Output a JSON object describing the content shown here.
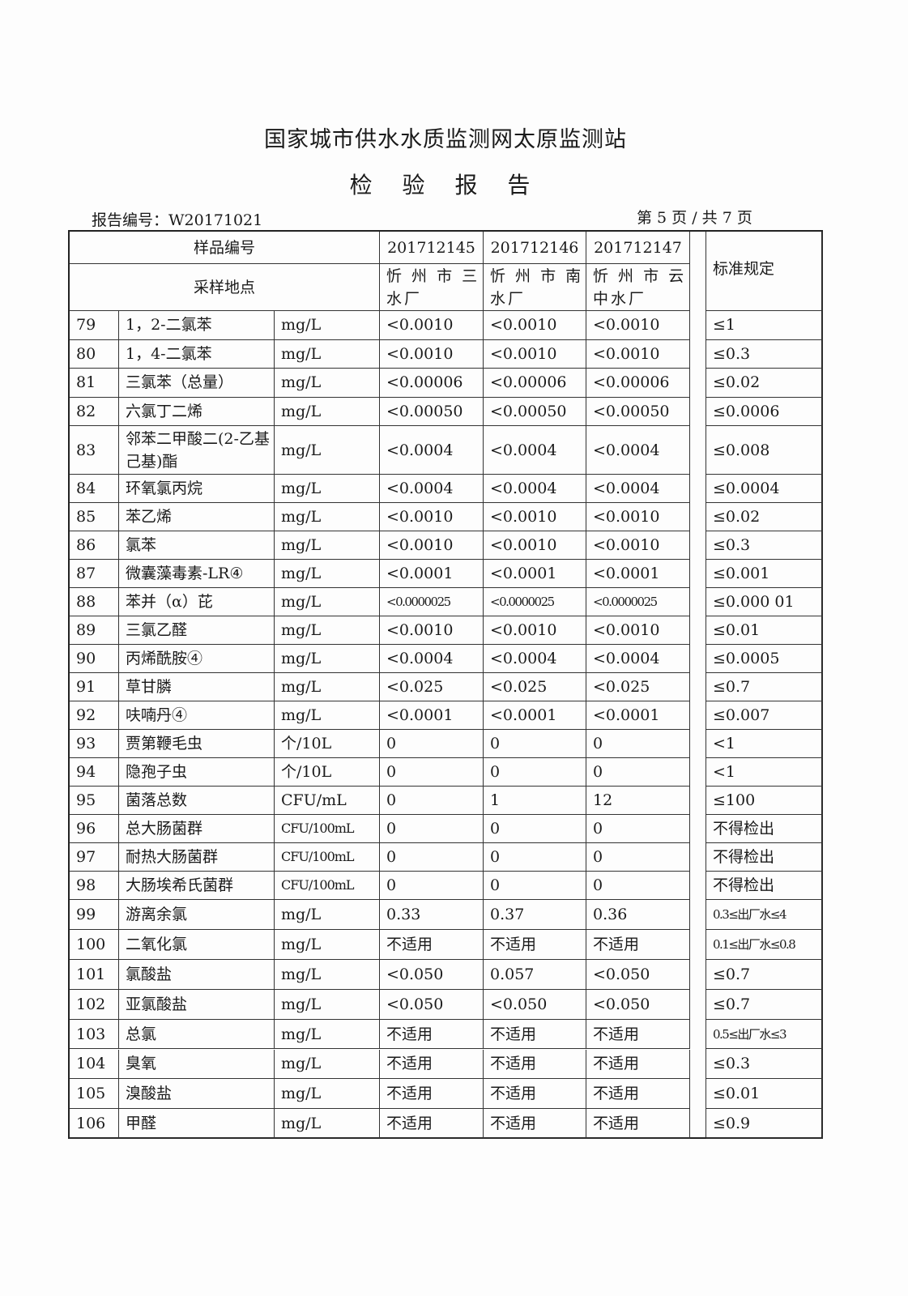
{
  "header": {
    "title": "国家城市供水水质监测网太原监测站",
    "subtitle": "检 验 报 告",
    "report_no": "报告编号：W20171021",
    "page": "第 5 页 / 共 7 页"
  },
  "table": {
    "sample_no_label": "样品编号",
    "location_label": "采样地点",
    "standard_label": "标准规定",
    "samples": [
      {
        "id": "201712145",
        "location": "忻 州 市 三 水厂"
      },
      {
        "id": "201712146",
        "location": "忻 州 市 南 水厂"
      },
      {
        "id": "201712147",
        "location": "忻 州 市 云 中水厂"
      }
    ],
    "rows": [
      [
        "79",
        "1，2-二氯苯",
        "mg/L",
        "<0.0010",
        "<0.0010",
        "<0.0010",
        "≤1"
      ],
      [
        "80",
        "1，4-二氯苯",
        "mg/L",
        "<0.0010",
        "<0.0010",
        "<0.0010",
        "≤0.3"
      ],
      [
        "81",
        "三氯苯（总量）",
        "mg/L",
        "<0.00006",
        "<0.00006",
        "<0.00006",
        "≤0.02"
      ],
      [
        "82",
        "六氯丁二烯",
        "mg/L",
        "<0.00050",
        "<0.00050",
        "<0.00050",
        "≤0.0006"
      ],
      [
        "83",
        "邻苯二甲酸二(2-乙基己基)酯",
        "mg/L",
        "<0.0004",
        "<0.0004",
        "<0.0004",
        "≤0.008"
      ],
      [
        "84",
        "环氧氯丙烷",
        "mg/L",
        "<0.0004",
        "<0.0004",
        "<0.0004",
        "≤0.0004"
      ],
      [
        "85",
        "苯乙烯",
        "mg/L",
        "<0.0010",
        "<0.0010",
        "<0.0010",
        "≤0.02"
      ],
      [
        "86",
        "氯苯",
        "mg/L",
        "<0.0010",
        "<0.0010",
        "<0.0010",
        "≤0.3"
      ],
      [
        "87",
        "微囊藻毒素-LR④",
        "mg/L",
        "<0.0001",
        "<0.0001",
        "<0.0001",
        "≤0.001"
      ],
      [
        "88",
        "苯并（α）芘",
        "mg/L",
        "<0.0000025",
        "<0.0000025",
        "<0.0000025",
        "≤0.000 01"
      ],
      [
        "89",
        "三氯乙醛",
        "mg/L",
        "<0.0010",
        "<0.0010",
        "<0.0010",
        "≤0.01"
      ],
      [
        "90",
        "丙烯酰胺④",
        "mg/L",
        "<0.0004",
        "<0.0004",
        "<0.0004",
        "≤0.0005"
      ],
      [
        "91",
        "草甘膦",
        "mg/L",
        "<0.025",
        "<0.025",
        "<0.025",
        "≤0.7"
      ],
      [
        "92",
        "呋喃丹④",
        "mg/L",
        "<0.0001",
        "<0.0001",
        "<0.0001",
        "≤0.007"
      ],
      [
        "93",
        "贾第鞭毛虫",
        "个/10L",
        "0",
        "0",
        "0",
        "<1"
      ],
      [
        "94",
        "隐孢子虫",
        "个/10L",
        "0",
        "0",
        "0",
        "<1"
      ],
      [
        "95",
        "菌落总数",
        "CFU/mL",
        "0",
        "1",
        "12",
        "≤100"
      ],
      [
        "96",
        "总大肠菌群",
        "CFU/100mL",
        "0",
        "0",
        "0",
        "不得检出"
      ],
      [
        "97",
        "耐热大肠菌群",
        "CFU/100mL",
        "0",
        "0",
        "0",
        "不得检出"
      ],
      [
        "98",
        "大肠埃希氏菌群",
        "CFU/100mL",
        "0",
        "0",
        "0",
        "不得检出"
      ],
      [
        "99",
        "游离余氯",
        "mg/L",
        "0.33",
        "0.37",
        "0.36",
        "0.3≤出厂水≤4"
      ],
      [
        "100",
        "二氧化氯",
        "mg/L",
        "不适用",
        "不适用",
        "不适用",
        "0.1≤出厂水≤0.8"
      ],
      [
        "101",
        "氯酸盐",
        "mg/L",
        "<0.050",
        "0.057",
        "<0.050",
        "≤0.7"
      ],
      [
        "102",
        "亚氯酸盐",
        "mg/L",
        "<0.050",
        "<0.050",
        "<0.050",
        "≤0.7"
      ],
      [
        "103",
        "总氯",
        "mg/L",
        "不适用",
        "不适用",
        "不适用",
        "0.5≤出厂水≤3"
      ],
      [
        "104",
        "臭氧",
        "mg/L",
        "不适用",
        "不适用",
        "不适用",
        "≤0.3"
      ],
      [
        "105",
        "溴酸盐",
        "mg/L",
        "不适用",
        "不适用",
        "不适用",
        "≤0.01"
      ],
      [
        "106",
        "甲醛",
        "mg/L",
        "不适用",
        "不适用",
        "不适用",
        "≤0.9"
      ]
    ]
  }
}
